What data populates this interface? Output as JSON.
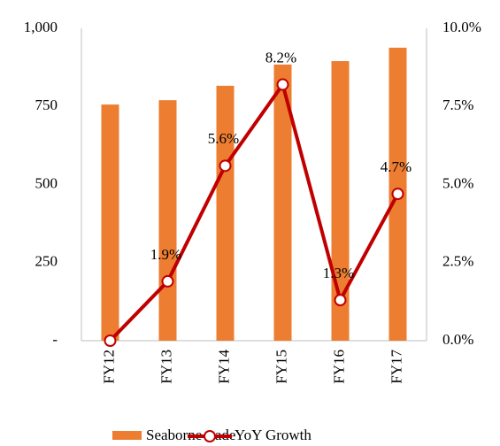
{
  "chart_data": {
    "type": "bar_line",
    "categories": [
      "FY12",
      "FY13",
      "FY14",
      "FY15",
      "FY16",
      "FY17"
    ],
    "series": [
      {
        "name": "Seaborne trade",
        "type": "bar",
        "color": "#ed7d31",
        "values": [
          756,
          770,
          816,
          884,
          895,
          938
        ]
      },
      {
        "name": "YoY Growth",
        "type": "line",
        "axis": "y2",
        "color": "#c00000",
        "values": [
          0,
          1.9,
          5.6,
          8.2,
          1.3,
          4.7
        ],
        "value_labels": [
          null,
          "1.9%",
          "5.6%",
          "8.2%",
          "1.3%",
          "4.7%"
        ]
      }
    ],
    "ylim": [
      0,
      1000
    ],
    "yticks": [
      {
        "value": 0,
        "label": "-"
      },
      250,
      500,
      750,
      {
        "value": 1000,
        "label": "1,000"
      }
    ],
    "y2lim": [
      0,
      10
    ],
    "y2ticks": [
      {
        "value": 0,
        "label": "0.0%"
      },
      {
        "value": 2.5,
        "label": "2.5%"
      },
      {
        "value": 5,
        "label": "5.0%"
      },
      {
        "value": 7.5,
        "label": "7.5%"
      },
      {
        "value": 10,
        "label": "10.0%"
      }
    ],
    "legend": "bottom"
  }
}
